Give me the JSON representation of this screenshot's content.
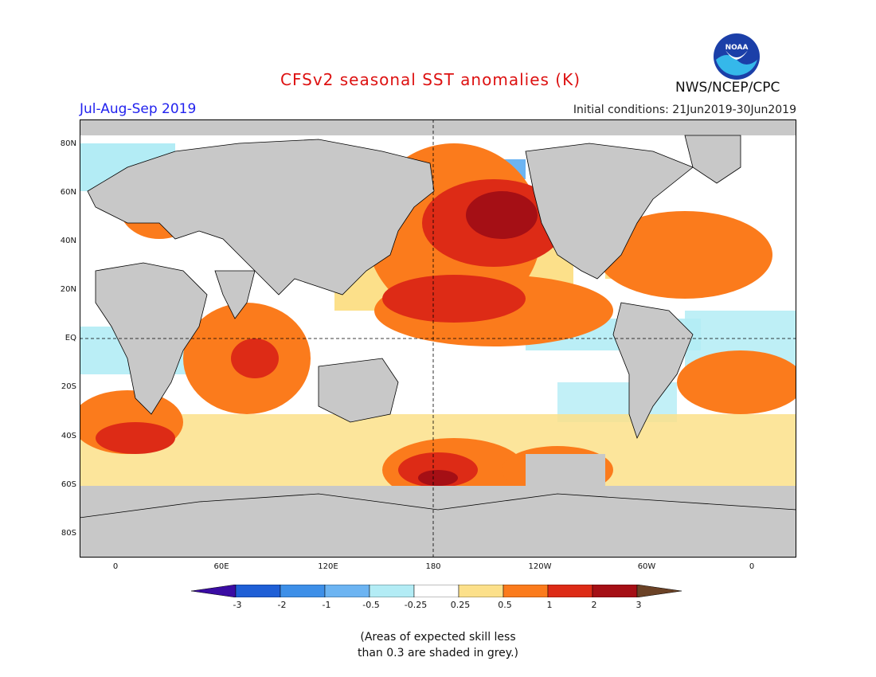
{
  "header": {
    "title": "CFSv2 seasonal SST anomalies (K)",
    "season": "Jul-Aug-Sep 2019",
    "initial_conditions": "Initial conditions: 21Jun2019-30Jun2019",
    "organization": "NWS/NCEP/CPC",
    "logo_text": "NOAA"
  },
  "axes": {
    "lat_labels": [
      "80N",
      "60N",
      "40N",
      "20N",
      "EQ",
      "20S",
      "40S",
      "60S",
      "80S"
    ],
    "lon_labels": [
      "0",
      "60E",
      "120E",
      "180",
      "120W",
      "60W",
      "0"
    ]
  },
  "legend": {
    "labels": [
      "-3",
      "-2",
      "-1",
      "-0.5",
      "-0.25",
      "0.25",
      "0.5",
      "1",
      "2",
      "3"
    ],
    "colors": [
      "#3a0ca3",
      "#1f5fd6",
      "#3d8fe8",
      "#6cb4f2",
      "#b3ecf5",
      "#ffffff",
      "#fce08a",
      "#fb7b1c",
      "#dd2b16",
      "#a50f15",
      "#6b4226"
    ]
  },
  "note": {
    "line1": "(Areas of expected skill less",
    "line2": "than 0.3 are shaded in grey.)"
  },
  "colors": {
    "land": "#c8c8c8",
    "low_skill": "#c8c8c8",
    "title": "#dd1111",
    "season": "#2222ee"
  }
}
